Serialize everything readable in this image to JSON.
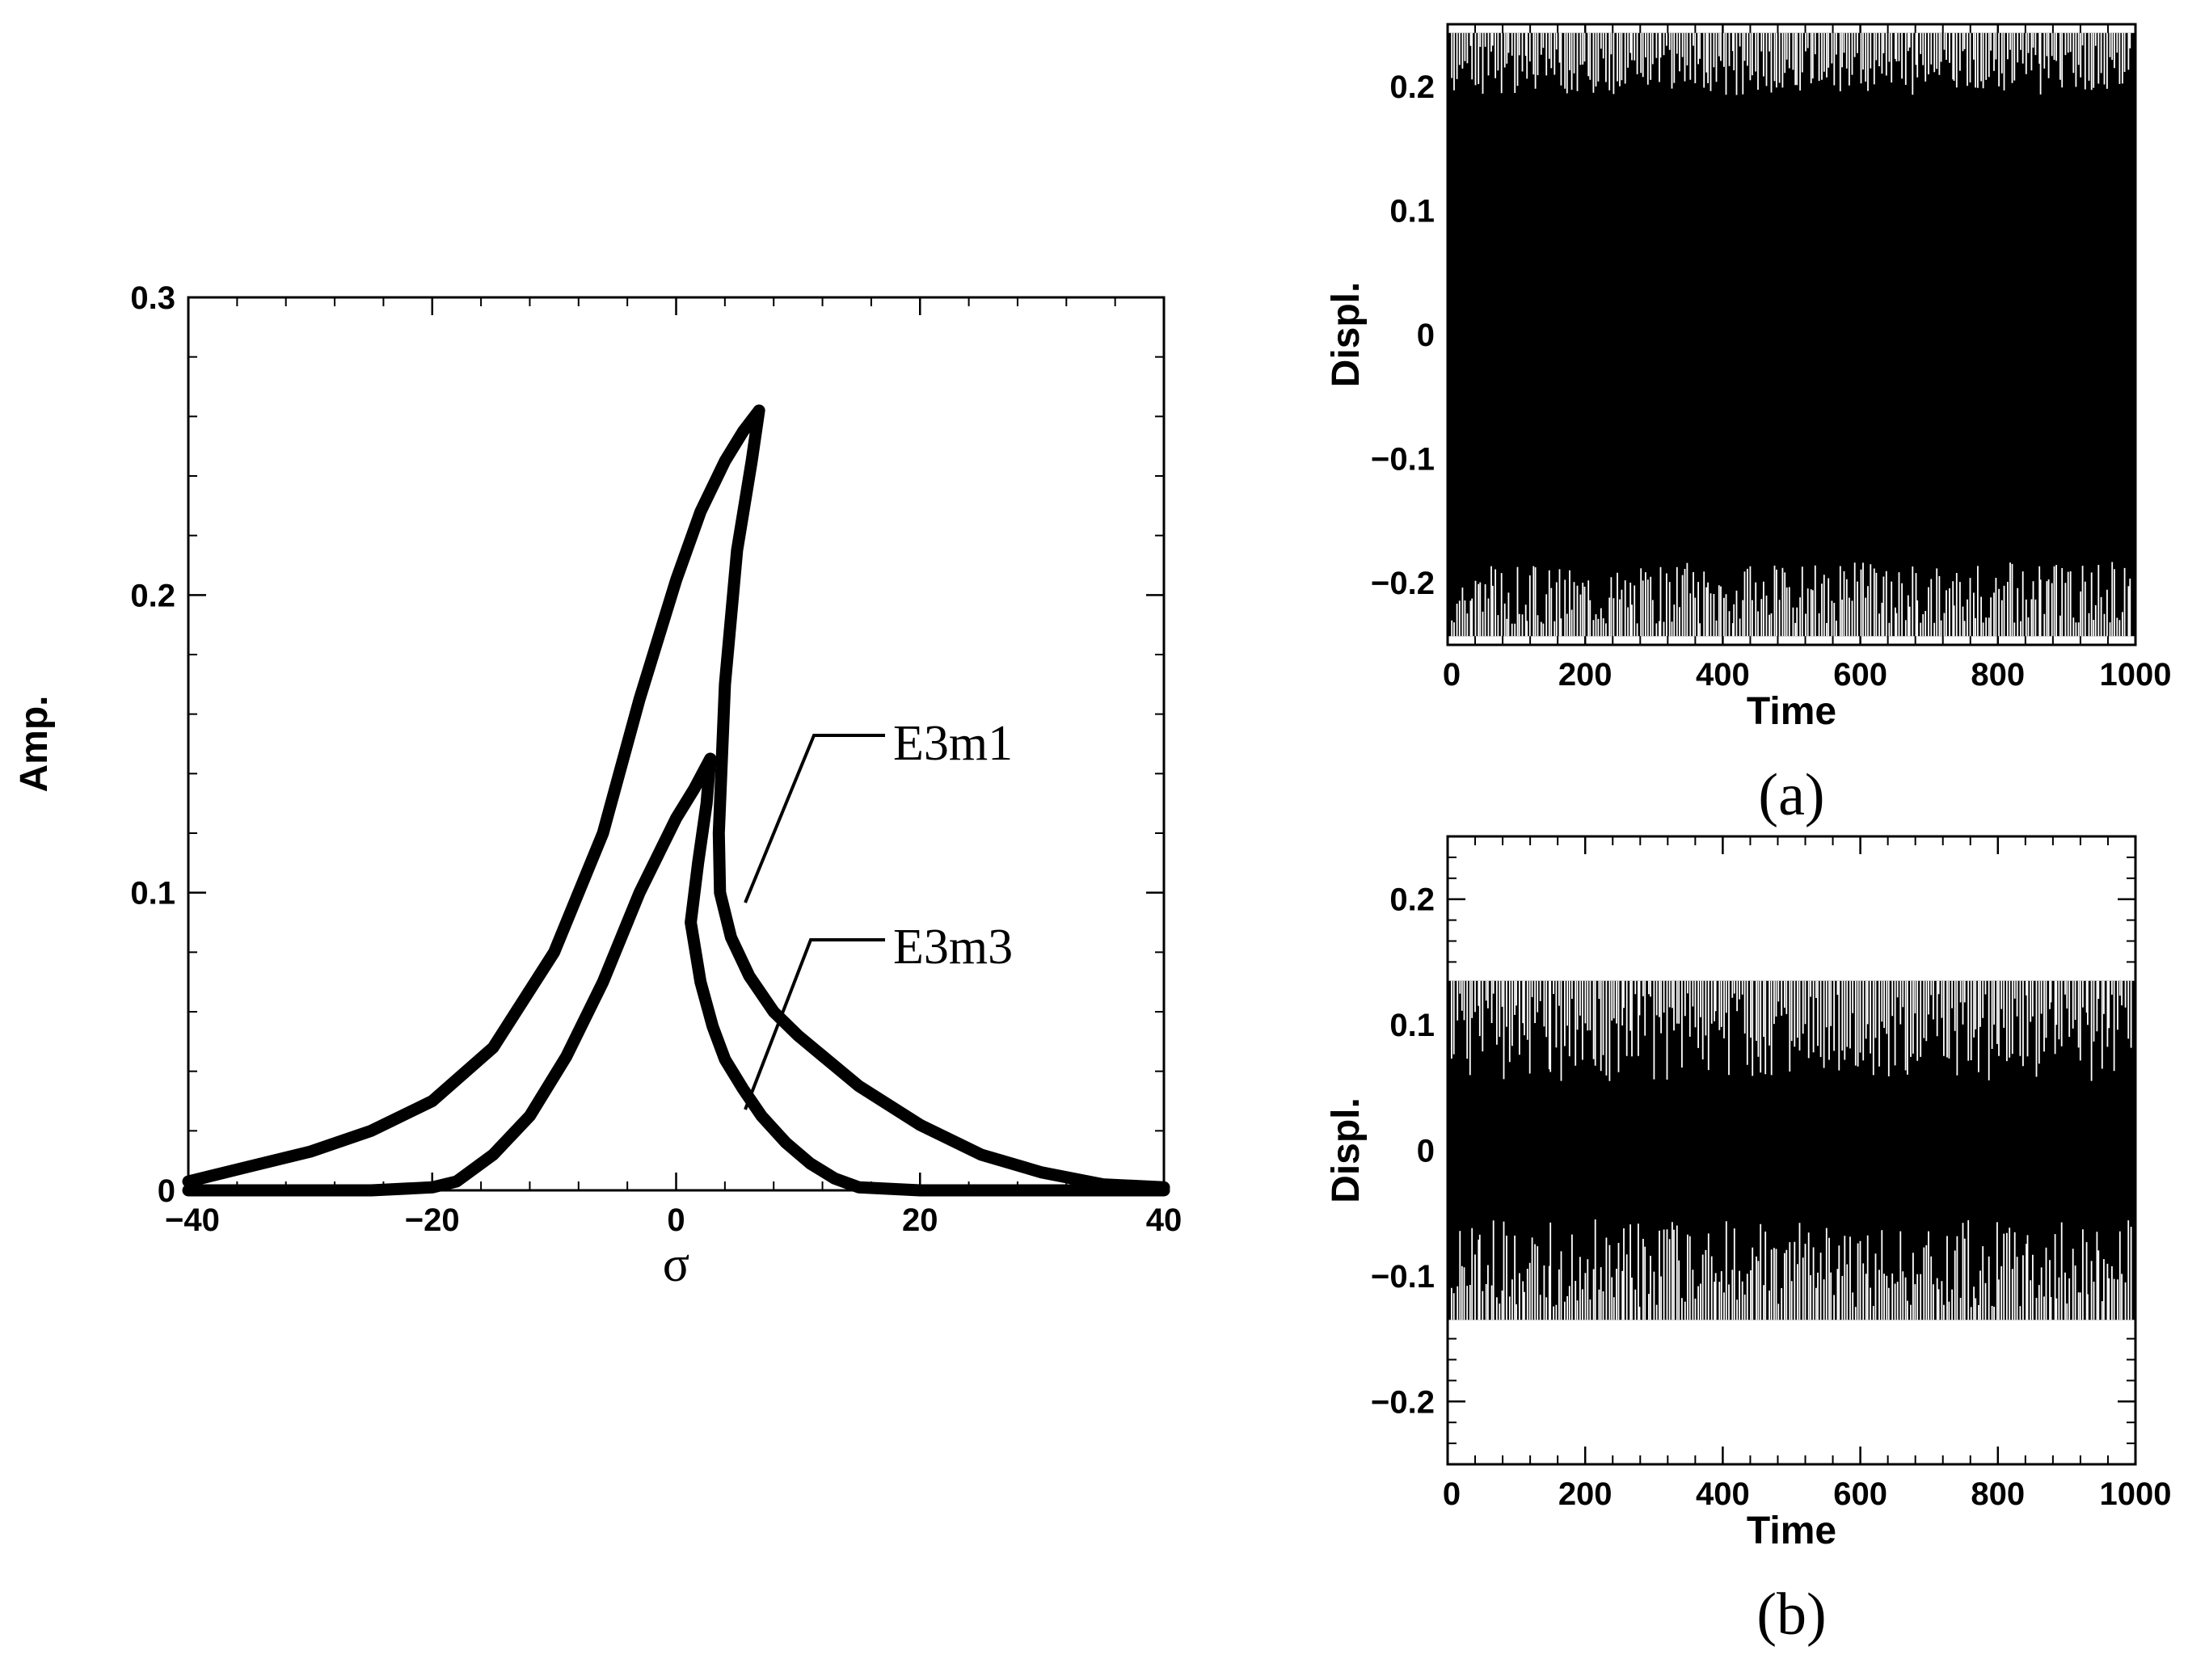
{
  "chart_data": [
    {
      "type": "line",
      "xlabel": "σ",
      "ylabel": "Amp.",
      "xlim": [
        -40,
        40
      ],
      "ylim": [
        0,
        0.3
      ],
      "xticks": [
        -40,
        -20,
        0,
        20,
        40
      ],
      "xtick_labels": [
        "−40",
        "−20",
        "0",
        "20",
        "40"
      ],
      "yticks": [
        0,
        0.1,
        0.2,
        0.3
      ],
      "ytick_labels": [
        "0",
        "0.1",
        "0.2",
        "0.3"
      ],
      "grid": false,
      "series": [
        {
          "name": "E3m1",
          "x": [
            -40,
            -35,
            -30,
            -25,
            -20,
            -15,
            -10,
            -6,
            -3,
            0,
            2,
            4,
            5.5,
            6.8,
            6.2,
            5,
            4,
            3.5,
            3.6,
            4.5,
            6,
            8,
            10,
            15,
            20,
            25,
            30,
            35,
            40
          ],
          "y": [
            0.003,
            0.008,
            0.013,
            0.02,
            0.03,
            0.048,
            0.08,
            0.12,
            0.165,
            0.205,
            0.228,
            0.245,
            0.255,
            0.262,
            0.245,
            0.215,
            0.17,
            0.12,
            0.1,
            0.085,
            0.072,
            0.06,
            0.052,
            0.035,
            0.022,
            0.012,
            0.006,
            0.002,
            0.001
          ]
        },
        {
          "name": "E3m3",
          "x": [
            -40,
            -30,
            -25,
            -20,
            -18,
            -15,
            -12,
            -9,
            -6,
            -3,
            0,
            1.5,
            2.8,
            2.5,
            1.8,
            1.2,
            2,
            3,
            4,
            5.5,
            7,
            9,
            11,
            13,
            15,
            20,
            30,
            40
          ],
          "y": [
            0,
            0,
            0,
            0.001,
            0.003,
            0.012,
            0.025,
            0.045,
            0.07,
            0.1,
            0.125,
            0.135,
            0.145,
            0.13,
            0.11,
            0.09,
            0.07,
            0.055,
            0.044,
            0.034,
            0.025,
            0.016,
            0.009,
            0.004,
            0.001,
            0,
            0,
            0
          ]
        }
      ],
      "annotations": [
        {
          "text": "E3m1",
          "target_series": "E3m1"
        },
        {
          "text": "E3m3",
          "target_series": "E3m3"
        }
      ]
    },
    {
      "type": "line",
      "panel_label": "(a)",
      "xlabel": "Time",
      "ylabel": "Displ.",
      "xlim": [
        0,
        1000
      ],
      "ylim": [
        -0.25,
        0.25
      ],
      "xticks": [
        0,
        200,
        400,
        600,
        800,
        1000
      ],
      "xtick_labels": [
        "0",
        "200",
        "400",
        "600",
        "800",
        "1000"
      ],
      "yticks": [
        -0.2,
        -0.1,
        0,
        0.1,
        0.2
      ],
      "ytick_labels": [
        "−0.2",
        "−0.1",
        "0",
        "0.1",
        "0.2"
      ],
      "series": [
        {
          "signal": "dense oscillation",
          "amplitude": 0.243,
          "t_range": [
            0,
            1000
          ]
        }
      ]
    },
    {
      "type": "line",
      "panel_label": "(b)",
      "xlabel": "Time",
      "ylabel": "Displ.",
      "xlim": [
        0,
        1000
      ],
      "ylim": [
        -0.25,
        0.25
      ],
      "xticks": [
        0,
        200,
        400,
        600,
        800,
        1000
      ],
      "xtick_labels": [
        "0",
        "200",
        "400",
        "600",
        "800",
        "1000"
      ],
      "yticks": [
        -0.2,
        -0.1,
        0,
        0.1,
        0.2
      ],
      "ytick_labels": [
        "−0.2",
        "−0.1",
        "0",
        "0.1",
        "0.2"
      ],
      "series": [
        {
          "signal": "dense oscillation",
          "amplitude": 0.135,
          "t_range": [
            0,
            1000
          ]
        }
      ]
    }
  ]
}
